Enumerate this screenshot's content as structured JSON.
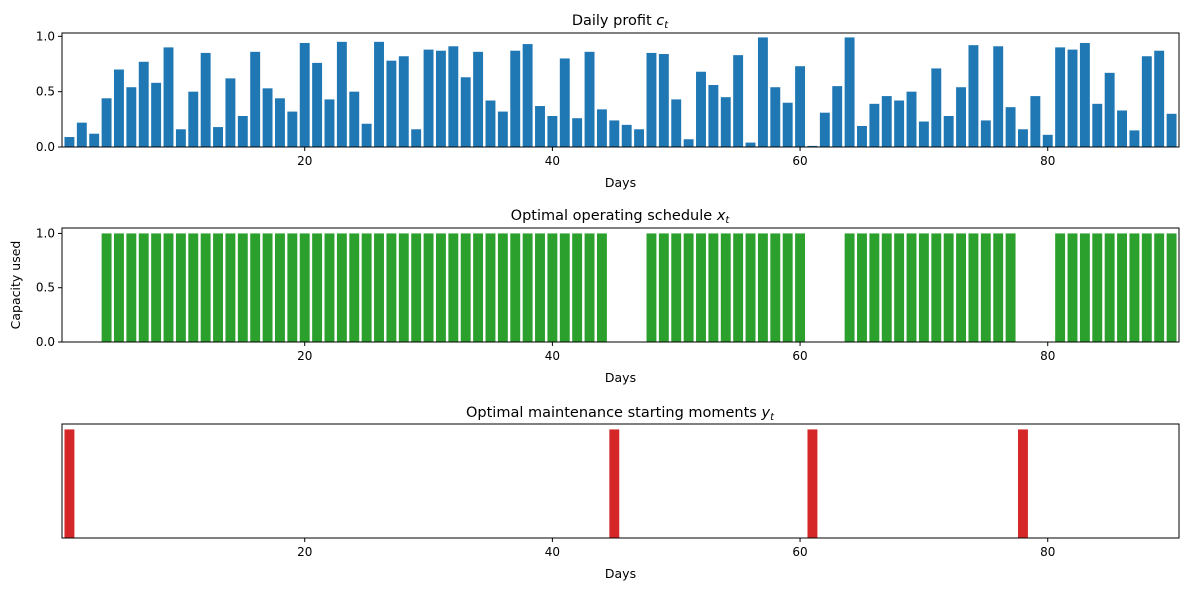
{
  "chart_data": [
    {
      "type": "bar",
      "title": "Daily profit",
      "title_var": "c",
      "title_sub": "t",
      "xlabel": "Days",
      "ylabel": "",
      "xlim": [
        0.4,
        90.6
      ],
      "ylim": [
        0,
        1.03
      ],
      "xticks": [
        20,
        40,
        60,
        80
      ],
      "yticks": [
        0.0,
        0.5,
        1.0
      ],
      "show_yticks": true,
      "color": "#1f77b4",
      "x": [
        1,
        2,
        3,
        4,
        5,
        6,
        7,
        8,
        9,
        10,
        11,
        12,
        13,
        14,
        15,
        16,
        17,
        18,
        19,
        20,
        21,
        22,
        23,
        24,
        25,
        26,
        27,
        28,
        29,
        30,
        31,
        32,
        33,
        34,
        35,
        36,
        37,
        38,
        39,
        40,
        41,
        42,
        43,
        44,
        45,
        46,
        47,
        48,
        49,
        50,
        51,
        52,
        53,
        54,
        55,
        56,
        57,
        58,
        59,
        60,
        61,
        62,
        63,
        64,
        65,
        66,
        67,
        68,
        69,
        70,
        71,
        72,
        73,
        74,
        75,
        76,
        77,
        78,
        79,
        80,
        81,
        82,
        83,
        84,
        85,
        86,
        87,
        88,
        89,
        90
      ],
      "values": [
        0.09,
        0.22,
        0.12,
        0.44,
        0.7,
        0.54,
        0.77,
        0.58,
        0.9,
        0.16,
        0.5,
        0.85,
        0.18,
        0.62,
        0.28,
        0.86,
        0.53,
        0.44,
        0.32,
        0.94,
        0.76,
        0.43,
        0.95,
        0.5,
        0.21,
        0.95,
        0.78,
        0.82,
        0.16,
        0.88,
        0.87,
        0.91,
        0.63,
        0.86,
        0.42,
        0.32,
        0.87,
        0.93,
        0.37,
        0.28,
        0.8,
        0.26,
        0.86,
        0.34,
        0.24,
        0.2,
        0.16,
        0.85,
        0.84,
        0.43,
        0.07,
        0.68,
        0.56,
        0.45,
        0.83,
        0.04,
        0.99,
        0.54,
        0.4,
        0.73,
        0.01,
        0.31,
        0.55,
        0.99,
        0.19,
        0.39,
        0.46,
        0.42,
        0.5,
        0.23,
        0.71,
        0.28,
        0.54,
        0.92,
        0.24,
        0.91,
        0.36,
        0.16,
        0.46,
        0.11,
        0.9,
        0.88,
        0.94,
        0.39,
        0.67,
        0.33,
        0.15,
        0.82,
        0.87,
        0.3
      ]
    },
    {
      "type": "bar",
      "title": "Optimal operating schedule",
      "title_var": "x",
      "title_sub": "t",
      "xlabel": "Days",
      "ylabel": "Capacity used",
      "xlim": [
        0.4,
        90.6
      ],
      "ylim": [
        0,
        1.05
      ],
      "xticks": [
        20,
        40,
        60,
        80
      ],
      "yticks": [
        0.0,
        0.5,
        1.0
      ],
      "show_yticks": true,
      "color": "#2ca02c",
      "x": [
        4,
        5,
        6,
        7,
        8,
        9,
        10,
        11,
        12,
        13,
        14,
        15,
        16,
        17,
        18,
        19,
        20,
        21,
        22,
        23,
        24,
        25,
        26,
        27,
        28,
        29,
        30,
        31,
        32,
        33,
        34,
        35,
        36,
        37,
        38,
        39,
        40,
        41,
        42,
        43,
        44,
        48,
        49,
        50,
        51,
        52,
        53,
        54,
        55,
        56,
        57,
        58,
        59,
        60,
        64,
        65,
        66,
        67,
        68,
        69,
        70,
        71,
        72,
        73,
        74,
        75,
        76,
        77,
        81,
        82,
        83,
        84,
        85,
        86,
        87,
        88,
        89,
        90
      ],
      "values": [
        1,
        1,
        1,
        1,
        1,
        1,
        1,
        1,
        1,
        1,
        1,
        1,
        1,
        1,
        1,
        1,
        1,
        1,
        1,
        1,
        1,
        1,
        1,
        1,
        1,
        1,
        1,
        1,
        1,
        1,
        1,
        1,
        1,
        1,
        1,
        1,
        1,
        1,
        1,
        1,
        1,
        1,
        1,
        1,
        1,
        1,
        1,
        1,
        1,
        1,
        1,
        1,
        1,
        1,
        1,
        1,
        1,
        1,
        1,
        1,
        1,
        1,
        1,
        1,
        1,
        1,
        1,
        1,
        1,
        1,
        1,
        1,
        1,
        1,
        1,
        1,
        1,
        1
      ]
    },
    {
      "type": "bar",
      "title": "Optimal maintenance starting moments",
      "title_var": "y",
      "title_sub": "t",
      "xlabel": "Days",
      "ylabel": "",
      "xlim": [
        0.4,
        90.6
      ],
      "ylim": [
        0,
        1.05
      ],
      "xticks": [
        20,
        40,
        60,
        80
      ],
      "yticks": [],
      "show_yticks": false,
      "color": "#d62728",
      "x": [
        1,
        45,
        61,
        78
      ],
      "values": [
        1,
        1,
        1,
        1
      ]
    }
  ]
}
